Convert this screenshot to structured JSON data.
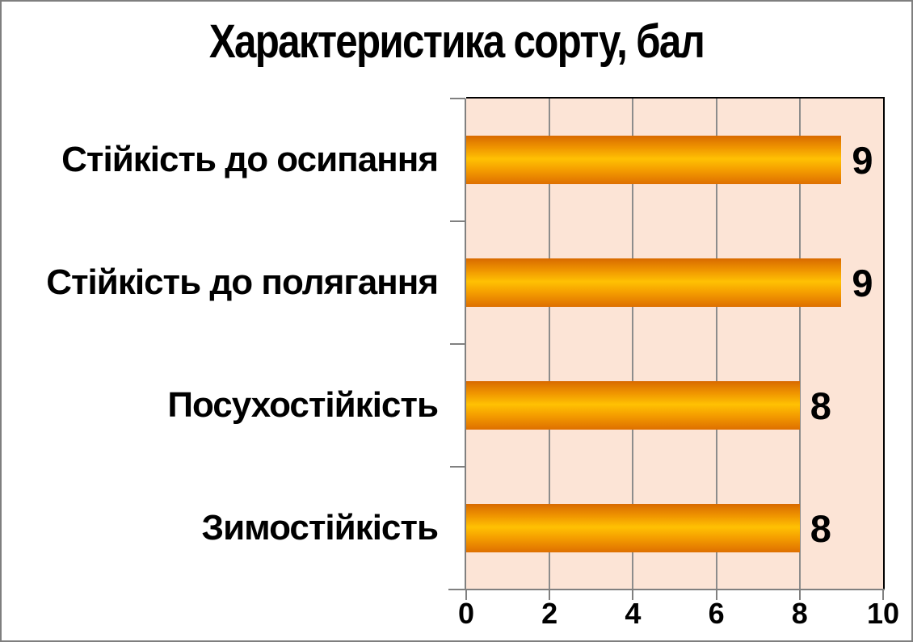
{
  "title": "Характеристика сорту, бал",
  "colors": {
    "plot_background": "#FCE4D6",
    "bar_dark": "#D86A00",
    "bar_bright": "#FFC103",
    "gridline": "#8C8C8C",
    "axis": "#808080",
    "plot_border": "#000000",
    "outer_border": "#7F7F7F",
    "text": "#000000"
  },
  "chart_data": {
    "type": "bar",
    "orientation": "horizontal",
    "title": "Характеристика сорту, бал",
    "categories": [
      "Стійкість до осипання",
      "Стійкість до полягання",
      "Посухостійкість",
      "Зимостійкість"
    ],
    "values": [
      9,
      9,
      8,
      8
    ],
    "data_labels": [
      "9",
      "9",
      "8",
      "8"
    ],
    "xlabel": "",
    "ylabel": "",
    "xlim": [
      0,
      10
    ],
    "xticks": [
      "0",
      "2",
      "4",
      "6",
      "8",
      "10"
    ],
    "grid": "vertical-only",
    "legend": "none"
  }
}
